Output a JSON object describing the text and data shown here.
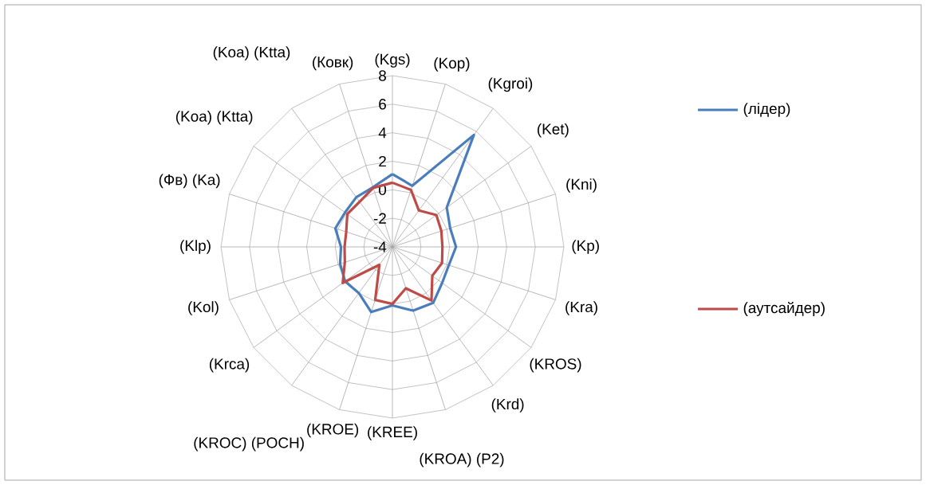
{
  "chart_data": {
    "type": "radar",
    "categories": [
      "(Kgs)",
      "(Kop)",
      "(Kgroi)",
      "(Ket)",
      "(Kni)",
      "(Kp)",
      "(Kra)",
      "(KROS)",
      "(Krd)",
      "(KROA) (P2)",
      "(KREE)",
      "(KROE)",
      "(KROC) (POCH)",
      "(Krca)",
      "(Kol)",
      "(Klp)",
      "(Фв) (Ka)",
      "(Koa) (Ktta)",
      "(Koa) (Ktta)",
      "(Ковк)"
    ],
    "series": [
      {
        "name": "(лідер)",
        "color": "#4a7ebb",
        "values": [
          1.1,
          0.5,
          5.7,
          0.7,
          0.25,
          0.45,
          0.15,
          0.3,
          0.85,
          0.7,
          0.1,
          0.8,
          0.0,
          0.1,
          -0.15,
          -0.4,
          0.2,
          0.1,
          0.3,
          0.4
        ]
      },
      {
        "name": "(аутсайдер)",
        "color": "#be4b48",
        "values": [
          0.5,
          0.2,
          -0.85,
          -0.2,
          -0.4,
          -0.5,
          -0.35,
          -0.55,
          0.65,
          -0.95,
          0.0,
          -0.1,
          -2.45,
          0.3,
          -0.5,
          -0.65,
          -0.6,
          -0.1,
          -0.1,
          0.35
        ]
      }
    ],
    "ylim": [
      -4,
      8
    ],
    "yticks": [
      -4,
      -2,
      0,
      2,
      4,
      6,
      8
    ],
    "grid": true,
    "legend": "right"
  }
}
